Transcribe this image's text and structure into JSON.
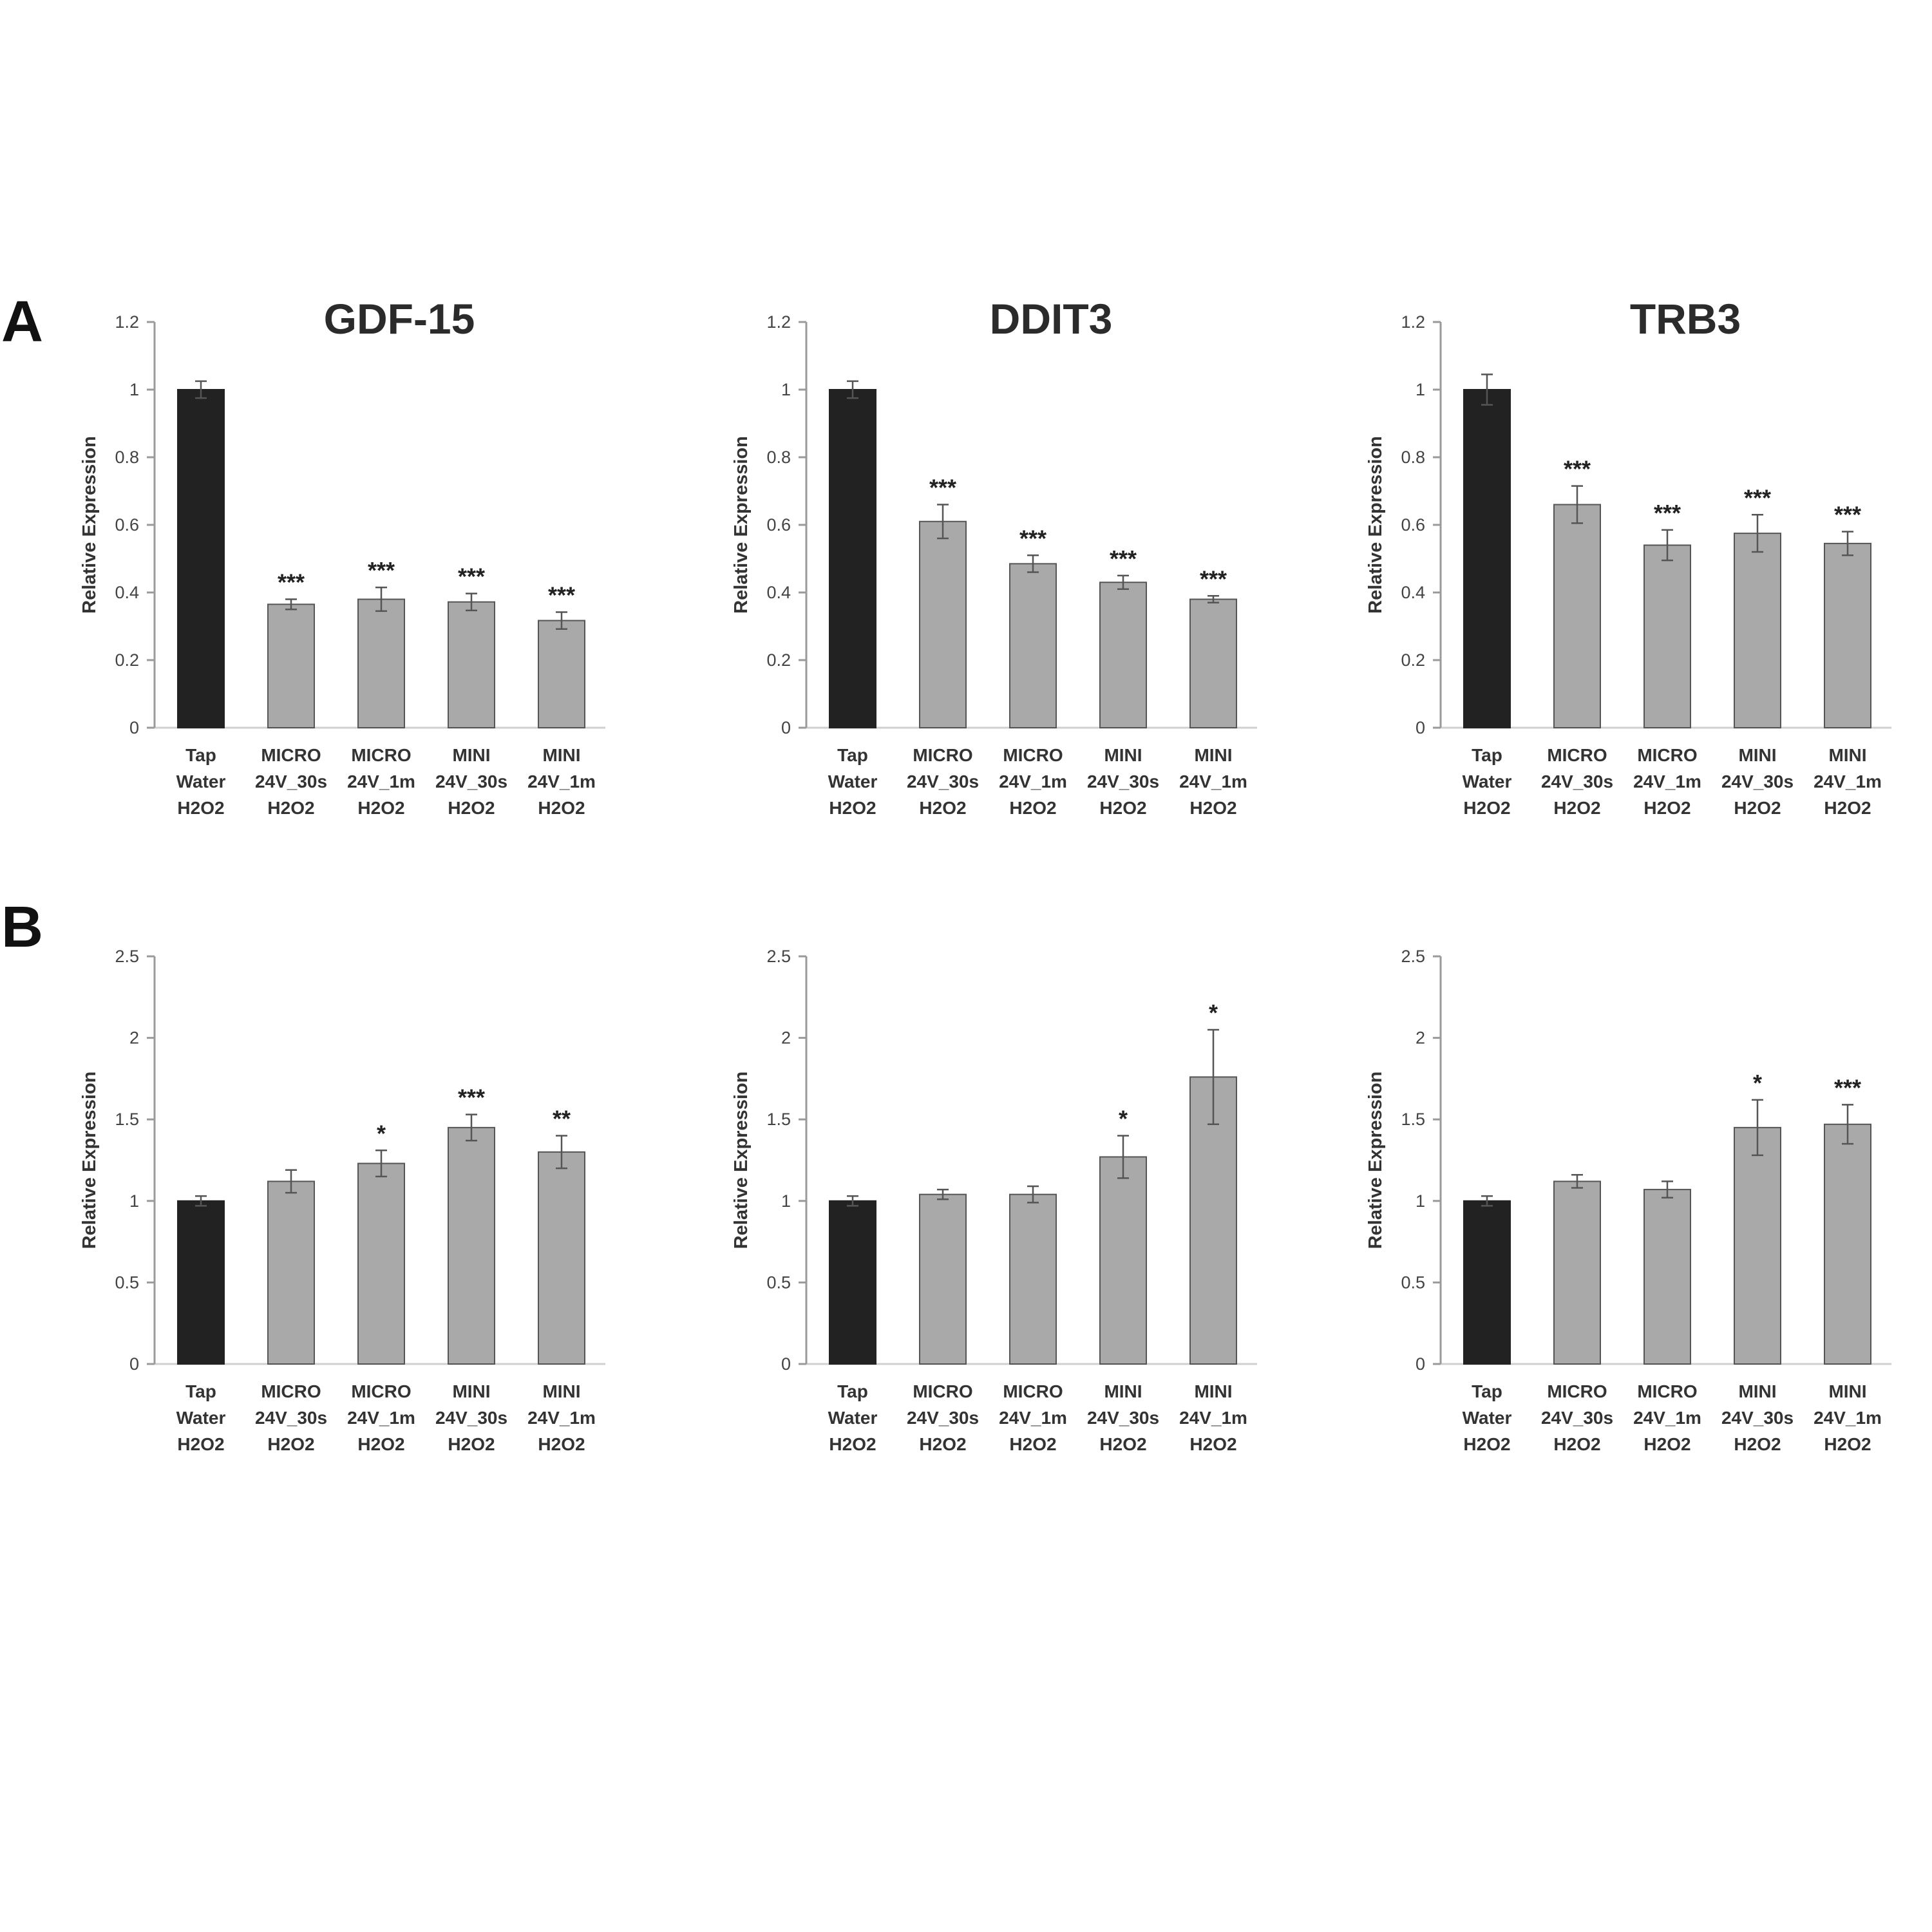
{
  "panel_labels": [
    "A",
    "B"
  ],
  "colors": {
    "control_bar": "#222222",
    "treated_bar": "#a9a9a9",
    "bar_outline": "#555555",
    "axis": "#9a9a9a",
    "grid": "#d0d0d0"
  },
  "categories": [
    [
      "Tap",
      "Water",
      "H2O2"
    ],
    [
      "MICRO",
      "24V_30s",
      "H2O2"
    ],
    [
      "MICRO",
      "24V_1m",
      "H2O2"
    ],
    [
      "MINI",
      "24V_30s",
      "H2O2"
    ],
    [
      "MINI",
      "24V_1m",
      "H2O2"
    ]
  ],
  "chart_data": [
    {
      "type": "bar",
      "panel": "A",
      "title": "GDF-15",
      "ylabel": "Relative Expression",
      "ylim": [
        0,
        1.2
      ],
      "yticks": [
        "0",
        "0.2",
        "0.4",
        "0.6",
        "0.8",
        "1",
        "1.2"
      ],
      "categories": [
        "Tap Water H2O2",
        "MICRO 24V_30s H2O2",
        "MICRO 24V_1m H2O2",
        "MINI 24V_30s H2O2",
        "MINI 24V_1m H2O2"
      ],
      "values": [
        1.0,
        0.365,
        0.38,
        0.372,
        0.317
      ],
      "errors": [
        0.025,
        0.015,
        0.035,
        0.025,
        0.025
      ],
      "significance": [
        "",
        "***",
        "***",
        "***",
        "***"
      ]
    },
    {
      "type": "bar",
      "panel": "A",
      "title": "DDIT3",
      "ylabel": "Relative Expression",
      "ylim": [
        0,
        1.2
      ],
      "yticks": [
        "0",
        "0.2",
        "0.4",
        "0.6",
        "0.8",
        "1",
        "1.2"
      ],
      "categories": [
        "Tap Water H2O2",
        "MICRO 24V_30s H2O2",
        "MICRO 24V_1m H2O2",
        "MINI 24V_30s H2O2",
        "MINI 24V_1m H2O2"
      ],
      "values": [
        1.0,
        0.61,
        0.485,
        0.43,
        0.38
      ],
      "errors": [
        0.025,
        0.05,
        0.025,
        0.02,
        0.01
      ],
      "significance": [
        "",
        "***",
        "***",
        "***",
        "***"
      ]
    },
    {
      "type": "bar",
      "panel": "A",
      "title": "TRB3",
      "ylabel": "Relative Expression",
      "ylim": [
        0,
        1.2
      ],
      "yticks": [
        "0",
        "0.2",
        "0.4",
        "0.6",
        "0.8",
        "1",
        "1.2"
      ],
      "categories": [
        "Tap Water H2O2",
        "MICRO 24V_30s H2O2",
        "MICRO 24V_1m H2O2",
        "MINI 24V_30s H2O2",
        "MINI 24V_1m H2O2"
      ],
      "values": [
        1.0,
        0.66,
        0.54,
        0.575,
        0.545
      ],
      "errors": [
        0.045,
        0.055,
        0.045,
        0.055,
        0.035
      ],
      "significance": [
        "",
        "***",
        "***",
        "***",
        "***"
      ]
    },
    {
      "type": "bar",
      "panel": "B",
      "title": "",
      "ylabel": "Relative Expression",
      "ylim": [
        0,
        2.5
      ],
      "yticks": [
        "0",
        "0.5",
        "1",
        "1.5",
        "2",
        "2.5"
      ],
      "categories": [
        "Tap Water H2O2",
        "MICRO 24V_30s H2O2",
        "MICRO 24V_1m H2O2",
        "MINI 24V_30s H2O2",
        "MINI 24V_1m H2O2"
      ],
      "values": [
        1.0,
        1.12,
        1.23,
        1.45,
        1.3
      ],
      "errors": [
        0.03,
        0.07,
        0.08,
        0.08,
        0.1
      ],
      "significance": [
        "",
        "",
        "*",
        "***",
        "**"
      ]
    },
    {
      "type": "bar",
      "panel": "B",
      "title": "",
      "ylabel": "Relative Expression",
      "ylim": [
        0,
        2.5
      ],
      "yticks": [
        "0",
        "0.5",
        "1",
        "1.5",
        "2",
        "2.5"
      ],
      "categories": [
        "Tap Water H2O2",
        "MICRO 24V_30s H2O2",
        "MICRO 24V_1m H2O2",
        "MINI 24V_30s H2O2",
        "MINI 24V_1m H2O2"
      ],
      "values": [
        1.0,
        1.04,
        1.04,
        1.27,
        1.76
      ],
      "errors": [
        0.03,
        0.03,
        0.05,
        0.13,
        0.29
      ],
      "significance": [
        "",
        "",
        "",
        "*",
        "*"
      ]
    },
    {
      "type": "bar",
      "panel": "B",
      "title": "",
      "ylabel": "Relative Expression",
      "ylim": [
        0,
        2.5
      ],
      "yticks": [
        "0",
        "0.5",
        "1",
        "1.5",
        "2",
        "2.5"
      ],
      "categories": [
        "Tap Water H2O2",
        "MICRO 24V_30s H2O2",
        "MICRO 24V_1m H2O2",
        "MINI 24V_30s H2O2",
        "MINI 24V_1m H2O2"
      ],
      "values": [
        1.0,
        1.12,
        1.07,
        1.45,
        1.47
      ],
      "errors": [
        0.03,
        0.04,
        0.05,
        0.17,
        0.12
      ],
      "significance": [
        "",
        "",
        "",
        "*",
        "***"
      ]
    }
  ]
}
